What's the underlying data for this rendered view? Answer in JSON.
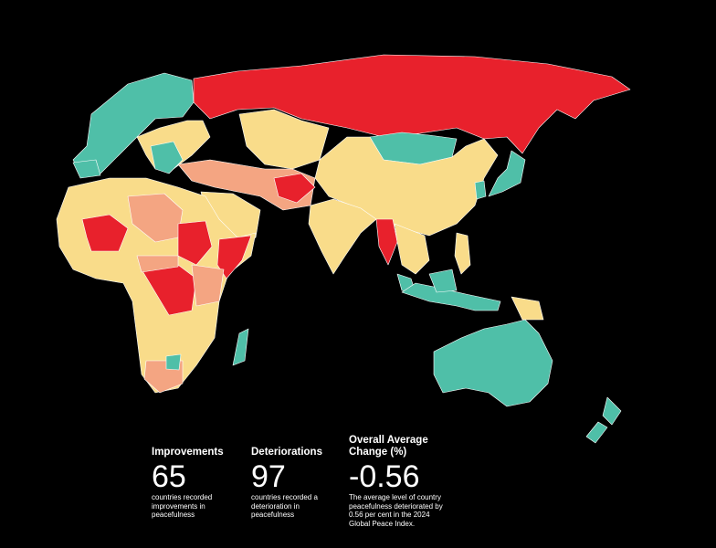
{
  "stats": [
    {
      "title": "Improvements",
      "value": 65,
      "description": "countries recorded improvements in peacefulness"
    },
    {
      "title": "Deteriorations",
      "value": 97,
      "description": "countries recorded a deterioration in peacefulness"
    },
    {
      "title": "Overall Average Change (%)",
      "value": -0.56,
      "description": "The average level of country peacefulness deteriorated by 0.56 per cent in the 2024 Global Peace Index."
    }
  ]
}
